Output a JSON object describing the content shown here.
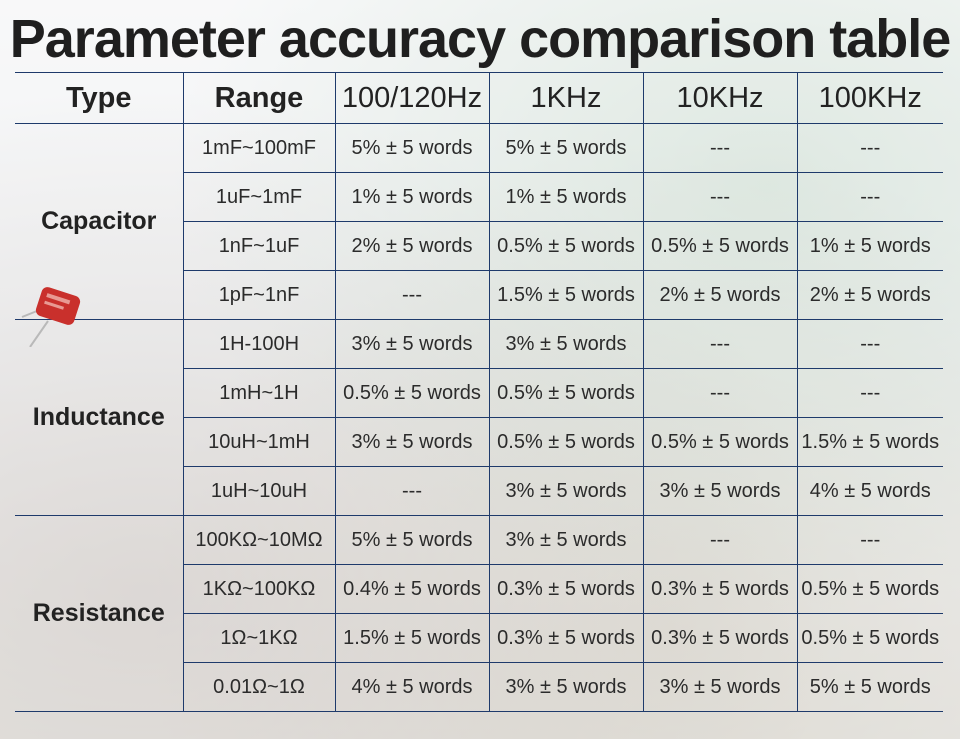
{
  "title": "Parameter accuracy comparison table",
  "headers": [
    "Type",
    "Range",
    "100/120Hz",
    "1KHz",
    "10KHz",
    "100KHz"
  ],
  "groups": [
    {
      "type": "Capacitor",
      "rows": [
        [
          "1mF~100mF",
          "5% ± 5 words",
          "5% ± 5 words",
          "---",
          "---"
        ],
        [
          "1uF~1mF",
          "1% ± 5 words",
          "1% ± 5 words",
          "---",
          "---"
        ],
        [
          "1nF~1uF",
          "2% ± 5 words",
          "0.5% ± 5 words",
          "0.5% ± 5 words",
          "1% ± 5 words"
        ],
        [
          "1pF~1nF",
          "---",
          "1.5% ± 5 words",
          "2% ± 5 words",
          "2% ± 5 words"
        ]
      ]
    },
    {
      "type": "Inductance",
      "rows": [
        [
          "1H-100H",
          "3% ± 5 words",
          "3% ± 5 words",
          "---",
          "---"
        ],
        [
          "1mH~1H",
          "0.5% ± 5 words",
          "0.5% ± 5 words",
          "---",
          "---"
        ],
        [
          "10uH~1mH",
          "3% ± 5 words",
          "0.5% ± 5 words",
          "0.5% ± 5 words",
          "1.5% ± 5 words"
        ],
        [
          "1uH~10uH",
          "---",
          "3% ± 5 words",
          "3% ± 5 words",
          "4% ± 5 words"
        ]
      ]
    },
    {
      "type": "Resistance",
      "rows": [
        [
          "100KΩ~10MΩ",
          "5% ± 5 words",
          "3% ± 5 words",
          "---",
          "---"
        ],
        [
          "1KΩ~100KΩ",
          "0.4% ± 5 words",
          "0.3% ± 5 words",
          "0.3% ± 5 words",
          "0.5% ± 5 words"
        ],
        [
          "1Ω~1KΩ",
          "1.5% ± 5 words",
          "0.3% ± 5 words",
          "0.3% ± 5 words",
          "0.5% ± 5 words"
        ],
        [
          "0.01Ω~1Ω",
          "4% ± 5 words",
          "3% ± 5 words",
          "3% ± 5 words",
          "5% ± 5 words"
        ]
      ]
    }
  ],
  "icons": {
    "capacitor": "capacitor-icon"
  },
  "colors": {
    "grid_line": "#1e3a6b",
    "capacitor_body": "#c9302c"
  }
}
